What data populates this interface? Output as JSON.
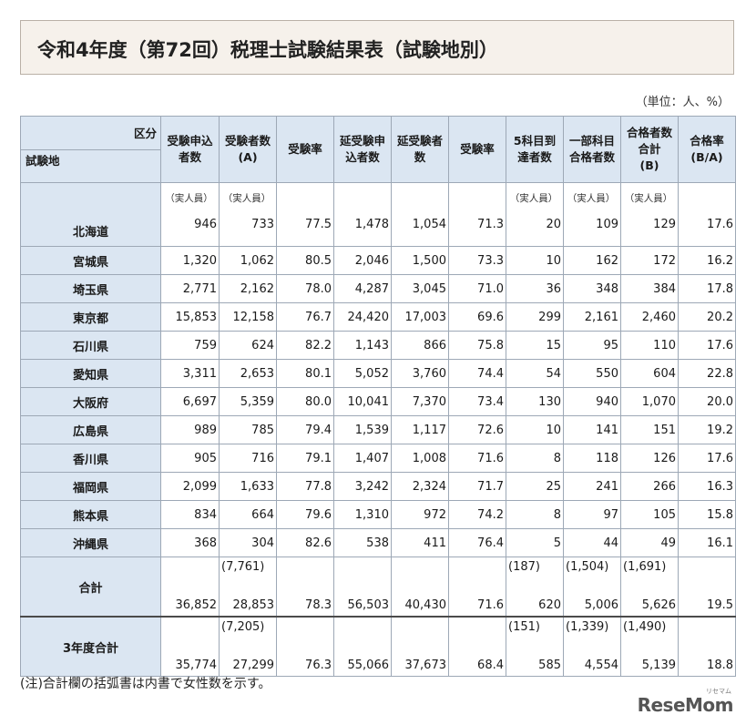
{
  "title": "令和4年度（第72回）税理士試験結果表（試験地別）",
  "unit": "（単位：人、%）",
  "header": {
    "corner_top": "区分",
    "corner_bottom": "試験地",
    "columns": [
      "受験申込者数",
      "受験者数(A)",
      "受験率",
      "延受験申込者数",
      "延受験者数",
      "受験率",
      "5科目到達者数",
      "一部科目合格者数",
      "合格者数合計(B)",
      "合格率(B/A)"
    ]
  },
  "subnote": "（実人員）",
  "rows": [
    {
      "name": "北海道",
      "values": [
        "946",
        "733",
        "77.5",
        "1,478",
        "1,054",
        "71.3",
        "20",
        "109",
        "129",
        "17.6"
      ]
    },
    {
      "name": "宮城県",
      "values": [
        "1,320",
        "1,062",
        "80.5",
        "2,046",
        "1,500",
        "73.3",
        "10",
        "162",
        "172",
        "16.2"
      ]
    },
    {
      "name": "埼玉県",
      "values": [
        "2,771",
        "2,162",
        "78.0",
        "4,287",
        "3,045",
        "71.0",
        "36",
        "348",
        "384",
        "17.8"
      ]
    },
    {
      "name": "東京都",
      "values": [
        "15,853",
        "12,158",
        "76.7",
        "24,420",
        "17,003",
        "69.6",
        "299",
        "2,161",
        "2,460",
        "20.2"
      ]
    },
    {
      "name": "石川県",
      "values": [
        "759",
        "624",
        "82.2",
        "1,143",
        "866",
        "75.8",
        "15",
        "95",
        "110",
        "17.6"
      ]
    },
    {
      "name": "愛知県",
      "values": [
        "3,311",
        "2,653",
        "80.1",
        "5,052",
        "3,760",
        "74.4",
        "54",
        "550",
        "604",
        "22.8"
      ]
    },
    {
      "name": "大阪府",
      "values": [
        "6,697",
        "5,359",
        "80.0",
        "10,041",
        "7,370",
        "73.4",
        "130",
        "940",
        "1,070",
        "20.0"
      ]
    },
    {
      "name": "広島県",
      "values": [
        "989",
        "785",
        "79.4",
        "1,539",
        "1,117",
        "72.6",
        "10",
        "141",
        "151",
        "19.2"
      ]
    },
    {
      "name": "香川県",
      "values": [
        "905",
        "716",
        "79.1",
        "1,407",
        "1,008",
        "71.6",
        "8",
        "118",
        "126",
        "17.6"
      ]
    },
    {
      "name": "福岡県",
      "values": [
        "2,099",
        "1,633",
        "77.8",
        "3,242",
        "2,324",
        "71.7",
        "25",
        "241",
        "266",
        "16.3"
      ]
    },
    {
      "name": "熊本県",
      "values": [
        "834",
        "664",
        "79.6",
        "1,310",
        "972",
        "74.2",
        "8",
        "97",
        "105",
        "15.8"
      ]
    },
    {
      "name": "沖縄県",
      "values": [
        "368",
        "304",
        "82.6",
        "538",
        "411",
        "76.4",
        "5",
        "44",
        "49",
        "16.1"
      ]
    }
  ],
  "totals": [
    {
      "name": "合計",
      "female": [
        "",
        "(7,761)",
        "",
        "",
        "",
        "",
        "(187)",
        "(1,504)",
        "(1,691)",
        ""
      ],
      "values": [
        "36,852",
        "28,853",
        "78.3",
        "56,503",
        "40,430",
        "71.6",
        "620",
        "5,006",
        "5,626",
        "19.5"
      ]
    },
    {
      "name": "3年度合計",
      "female": [
        "",
        "(7,205)",
        "",
        "",
        "",
        "",
        "(151)",
        "(1,339)",
        "(1,490)",
        ""
      ],
      "values": [
        "35,774",
        "27,299",
        "76.3",
        "55,066",
        "37,673",
        "68.4",
        "585",
        "4,554",
        "5,139",
        "18.8"
      ]
    }
  ],
  "note": "(注)合計欄の括弧書は内書で女性数を示す。",
  "logo": "ReseMom",
  "logo_ruby": "リセマム"
}
